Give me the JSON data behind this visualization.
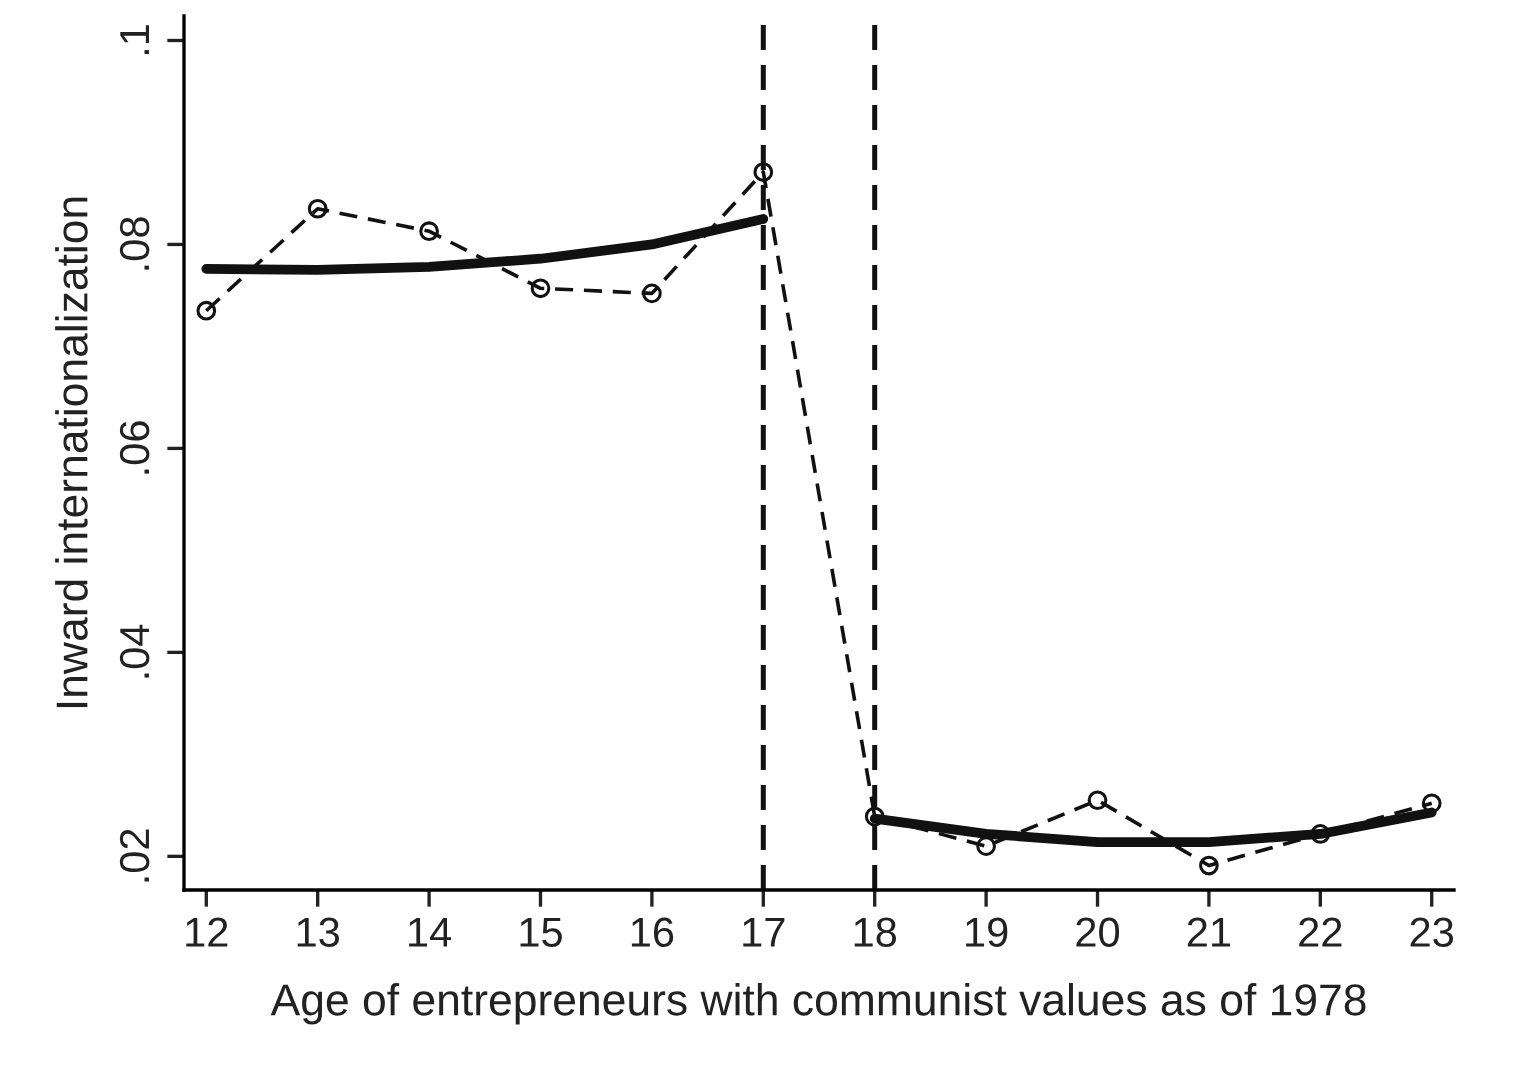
{
  "chart_data": {
    "type": "line",
    "xlabel": "Age of entrepreneurs with communist values as of 1978",
    "ylabel": "Inward internationalization",
    "xlim": [
      11.8,
      23.2
    ],
    "xticks": [
      12,
      13,
      14,
      15,
      16,
      17,
      18,
      19,
      20,
      21,
      22,
      23
    ],
    "ylim": [
      0.0167,
      0.1024
    ],
    "yticks": [
      {
        "value": 0.02,
        "label": ".02"
      },
      {
        "value": 0.04,
        "label": ".04"
      },
      {
        "value": 0.06,
        "label": ".06"
      },
      {
        "value": 0.08,
        "label": ".08"
      },
      {
        "value": 0.1,
        "label": ".1"
      }
    ],
    "grid": false,
    "legend": false,
    "series": [
      {
        "color": "#111111",
        "line_style": "dashed",
        "marker": "circle",
        "x": [
          12,
          13,
          14,
          15,
          16,
          17,
          18,
          19,
          20,
          21,
          22,
          23
        ],
        "values": [
          0.0735,
          0.0835,
          0.0813,
          0.0757,
          0.0752,
          0.0871,
          0.0239,
          0.021,
          0.0255,
          0.0191,
          0.0222,
          0.0252
        ]
      },
      {
        "color": "#111111",
        "line_style": "solid",
        "marker": "none",
        "x": [
          12,
          13,
          14,
          15,
          16,
          17
        ],
        "values": [
          0.0776,
          0.0775,
          0.0778,
          0.0786,
          0.08,
          0.0825
        ]
      },
      {
        "color": "#111111",
        "line_style": "solid",
        "marker": "none",
        "x": [
          18,
          19,
          20,
          21,
          22,
          23
        ],
        "values": [
          0.0237,
          0.0222,
          0.0214,
          0.0214,
          0.0222,
          0.0243
        ]
      }
    ],
    "ref_lines": [
      {
        "axis": "x",
        "value": 17,
        "color": "#111111",
        "line_style": "dashed"
      },
      {
        "axis": "x",
        "value": 18,
        "color": "#111111",
        "line_style": "dashed"
      }
    ]
  }
}
